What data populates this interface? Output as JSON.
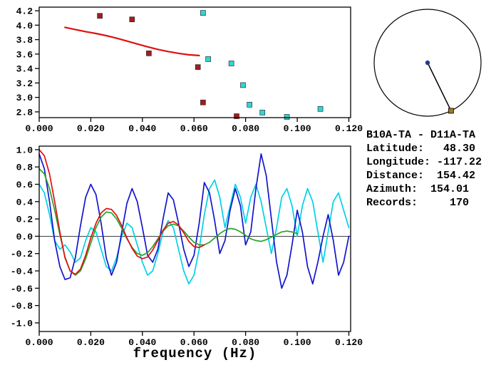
{
  "info_panel": {
    "title": "B10A-TA - D11A-TA",
    "lines": [
      "Latitude:   48.30",
      "Longitude: -117.22",
      "Distance:  154.42",
      "Azimuth:  154.01",
      "Records:     170"
    ]
  },
  "azimuth_dial": {
    "azimuth_deg": 154.01,
    "center_color": "#223a8c",
    "marker_color": "#a07828"
  },
  "chart_data": [
    {
      "id": "dispersion",
      "type": "scatter",
      "title": "",
      "xlabel": "",
      "ylabel": "",
      "xlim": [
        0,
        0.1207
      ],
      "ylim": [
        2.72,
        4.25
      ],
      "grid": false,
      "zero_line": false,
      "x_ticks": [
        "0.000",
        "0.020",
        "0.040",
        "0.060",
        "0.080",
        "0.100",
        "0.120"
      ],
      "y_ticks": [
        "2.8",
        "3.0",
        "3.2",
        "3.4",
        "3.6",
        "3.8",
        "4.0",
        "4.2"
      ],
      "series": [
        {
          "name": "dispersion-red-points",
          "style": "points",
          "color": "#a51c1c",
          "points": [
            [
              0.0235,
              4.13
            ],
            [
              0.036,
              4.08
            ],
            [
              0.0425,
              3.61
            ],
            [
              0.0615,
              3.42
            ],
            [
              0.0635,
              2.93
            ],
            [
              0.0765,
              2.74
            ]
          ]
        },
        {
          "name": "dispersion-cyan-points",
          "style": "points",
          "color": "#30d5d5",
          "points": [
            [
              0.0635,
              4.17
            ],
            [
              0.0655,
              3.53
            ],
            [
              0.0745,
              3.47
            ],
            [
              0.079,
              3.17
            ],
            [
              0.0815,
              2.9
            ],
            [
              0.0865,
              2.79
            ],
            [
              0.096,
              2.73
            ],
            [
              0.109,
              2.84
            ]
          ]
        },
        {
          "name": "dispersion-fit-curve",
          "style": "line",
          "color": "#e01010",
          "width": 2.2,
          "points": [
            [
              0.01,
              3.97
            ],
            [
              0.014,
              3.94
            ],
            [
              0.018,
              3.91
            ],
            [
              0.022,
              3.885
            ],
            [
              0.026,
              3.855
            ],
            [
              0.03,
              3.82
            ],
            [
              0.034,
              3.78
            ],
            [
              0.038,
              3.74
            ],
            [
              0.042,
              3.7
            ],
            [
              0.046,
              3.665
            ],
            [
              0.05,
              3.635
            ],
            [
              0.054,
              3.61
            ],
            [
              0.058,
              3.59
            ],
            [
              0.062,
              3.58
            ]
          ]
        }
      ]
    },
    {
      "id": "waveform",
      "type": "line",
      "title": "",
      "xlabel": "frequency (Hz)",
      "ylabel": "",
      "xlim": [
        0,
        0.1207
      ],
      "ylim": [
        -1.1,
        1.04
      ],
      "grid": false,
      "zero_line": true,
      "x_ticks": [
        "0.000",
        "0.020",
        "0.040",
        "0.060",
        "0.080",
        "0.100",
        "0.120"
      ],
      "y_ticks": [
        "1.0",
        "0.8",
        "0.6",
        "0.4",
        "0.2",
        "0.0",
        "-0.2",
        "-0.4",
        "-0.6",
        "-0.8",
        "-1.0"
      ],
      "series": [
        {
          "name": "cyan-trace",
          "style": "line",
          "color": "#00d2e6",
          "width": 1.7,
          "x0": 0,
          "dx": 0.002,
          "y": [
            0.6,
            0.5,
            0.25,
            -0.05,
            -0.15,
            -0.1,
            -0.18,
            -0.3,
            -0.25,
            -0.05,
            0.1,
            0.05,
            -0.15,
            -0.35,
            -0.4,
            -0.25,
            0.0,
            0.15,
            0.1,
            -0.1,
            -0.3,
            -0.45,
            -0.4,
            -0.2,
            0.05,
            0.18,
            0.1,
            -0.15,
            -0.4,
            -0.55,
            -0.45,
            -0.15,
            0.25,
            0.55,
            0.65,
            0.45,
            0.1,
            0.35,
            0.6,
            0.45,
            0.15,
            0.45,
            0.6,
            0.4,
            0.1,
            -0.2,
            0.1,
            0.45,
            0.55,
            0.35,
            0.0,
            0.35,
            0.55,
            0.4,
            0.05,
            -0.3,
            0.05,
            0.4,
            0.5,
            0.3,
            0.1
          ]
        },
        {
          "name": "blue-trace",
          "style": "line",
          "color": "#1414cd",
          "width": 1.7,
          "x0": 0,
          "dx": 0.002,
          "y": [
            0.95,
            0.78,
            0.4,
            -0.05,
            -0.35,
            -0.5,
            -0.48,
            -0.25,
            0.12,
            0.45,
            0.6,
            0.48,
            0.15,
            -0.25,
            -0.45,
            -0.3,
            0.05,
            0.38,
            0.55,
            0.4,
            0.1,
            -0.22,
            -0.3,
            -0.15,
            0.2,
            0.5,
            0.42,
            0.15,
            -0.15,
            -0.35,
            -0.22,
            0.15,
            0.62,
            0.5,
            0.18,
            -0.2,
            -0.05,
            0.3,
            0.55,
            0.35,
            -0.1,
            0.05,
            0.55,
            0.95,
            0.7,
            0.2,
            -0.3,
            -0.6,
            -0.45,
            -0.1,
            0.3,
            0.05,
            -0.35,
            -0.55,
            -0.3,
            0.0,
            0.25,
            -0.05,
            -0.45,
            -0.3,
            0.0
          ]
        },
        {
          "name": "green-trace",
          "style": "line",
          "color": "#28a428",
          "width": 1.7,
          "x0": 0,
          "dx": 0.002,
          "y": [
            0.78,
            0.72,
            0.55,
            0.3,
            0.02,
            -0.24,
            -0.4,
            -0.45,
            -0.4,
            -0.26,
            -0.08,
            0.1,
            0.22,
            0.28,
            0.27,
            0.2,
            0.09,
            -0.03,
            -0.13,
            -0.2,
            -0.22,
            -0.19,
            -0.12,
            -0.03,
            0.06,
            0.12,
            0.14,
            0.12,
            0.06,
            -0.01,
            -0.07,
            -0.1,
            -0.1,
            -0.07,
            -0.02,
            0.03,
            0.07,
            0.09,
            0.08,
            0.05,
            0.01,
            -0.03,
            -0.05,
            -0.06,
            -0.04,
            -0.01,
            0.02,
            0.05,
            0.06,
            0.05,
            0.03
          ]
        },
        {
          "name": "red-trace",
          "style": "line",
          "color": "#e01010",
          "width": 1.7,
          "x0": 0,
          "dx": 0.002,
          "y": [
            1.0,
            0.93,
            0.72,
            0.4,
            0.05,
            -0.25,
            -0.4,
            -0.44,
            -0.38,
            -0.22,
            -0.02,
            0.15,
            0.27,
            0.32,
            0.31,
            0.24,
            0.12,
            -0.02,
            -0.14,
            -0.23,
            -0.26,
            -0.24,
            -0.16,
            -0.05,
            0.07,
            0.15,
            0.17,
            0.13,
            0.04,
            -0.06,
            -0.12,
            -0.13,
            -0.1
          ]
        }
      ]
    }
  ]
}
